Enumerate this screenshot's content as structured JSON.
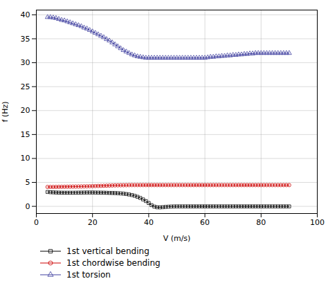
{
  "chart_data": {
    "type": "line",
    "xlabel": "V (m/s)",
    "ylabel": "f (Hz)",
    "xlim": [
      0,
      100
    ],
    "ylim": [
      -1.5,
      41
    ],
    "xticks": [
      0,
      20,
      40,
      60,
      80,
      100
    ],
    "yticks": [
      0,
      5,
      10,
      15,
      20,
      25,
      30,
      35,
      40
    ],
    "grid": true,
    "legend": "bottom",
    "x": [
      4,
      5,
      6,
      7,
      8,
      9,
      10,
      11,
      12,
      13,
      14,
      15,
      16,
      17,
      18,
      19,
      20,
      21,
      22,
      23,
      24,
      25,
      26,
      27,
      28,
      29,
      30,
      31,
      32,
      33,
      34,
      35,
      36,
      37,
      38,
      39,
      40,
      41,
      42,
      43,
      44,
      45,
      46,
      47,
      48,
      49,
      50,
      51,
      52,
      53,
      54,
      55,
      56,
      57,
      58,
      59,
      60,
      61,
      62,
      63,
      64,
      65,
      66,
      67,
      68,
      69,
      70,
      71,
      72,
      73,
      74,
      75,
      76,
      77,
      78,
      79,
      80,
      81,
      82,
      83,
      84,
      85,
      86,
      87,
      88,
      89,
      90
    ],
    "series": [
      {
        "name": "1st vertical bending",
        "color": "#000000",
        "marker": "square",
        "values": [
          3.0,
          2.95,
          2.92,
          2.89,
          2.87,
          2.85,
          2.84,
          2.84,
          2.84,
          2.84,
          2.85,
          2.86,
          2.87,
          2.88,
          2.89,
          2.89,
          2.89,
          2.88,
          2.87,
          2.86,
          2.85,
          2.83,
          2.81,
          2.79,
          2.77,
          2.74,
          2.7,
          2.65,
          2.57,
          2.48,
          2.36,
          2.2,
          2.0,
          1.75,
          1.45,
          1.1,
          0.7,
          0.25,
          -0.05,
          -0.2,
          -0.22,
          -0.18,
          -0.12,
          -0.07,
          -0.04,
          -0.02,
          -0.01,
          -0.01,
          -0.01,
          -0.01,
          -0.01,
          -0.01,
          -0.01,
          -0.01,
          -0.01,
          -0.01,
          -0.01,
          -0.01,
          -0.01,
          -0.01,
          -0.01,
          -0.01,
          -0.01,
          -0.01,
          -0.01,
          -0.01,
          -0.01,
          -0.01,
          -0.01,
          -0.01,
          -0.01,
          -0.01,
          -0.01,
          -0.01,
          -0.01,
          -0.01,
          -0.01,
          -0.01,
          -0.01,
          -0.01,
          -0.01,
          -0.01,
          -0.01,
          -0.01,
          -0.01,
          -0.01,
          -0.01
        ]
      },
      {
        "name": "1st chordwise bending",
        "color": "#cc0000",
        "marker": "circle",
        "values": [
          4.05,
          4.05,
          4.05,
          4.06,
          4.07,
          4.08,
          4.09,
          4.1,
          4.11,
          4.12,
          4.13,
          4.14,
          4.15,
          4.17,
          4.18,
          4.2,
          4.22,
          4.24,
          4.26,
          4.28,
          4.3,
          4.32,
          4.34,
          4.36,
          4.38,
          4.39,
          4.4,
          4.41,
          4.42,
          4.43,
          4.44,
          4.44,
          4.44,
          4.44,
          4.44,
          4.44,
          4.44,
          4.44,
          4.44,
          4.44,
          4.44,
          4.44,
          4.44,
          4.44,
          4.44,
          4.44,
          4.44,
          4.44,
          4.44,
          4.44,
          4.44,
          4.44,
          4.44,
          4.44,
          4.44,
          4.44,
          4.44,
          4.44,
          4.44,
          4.44,
          4.44,
          4.44,
          4.44,
          4.44,
          4.44,
          4.44,
          4.44,
          4.44,
          4.44,
          4.44,
          4.44,
          4.44,
          4.44,
          4.44,
          4.44,
          4.44,
          4.44,
          4.44,
          4.44,
          4.44,
          4.44,
          4.44,
          4.44,
          4.44,
          4.44,
          4.44,
          4.44
        ]
      },
      {
        "name": "1st torsion",
        "color": "#4040a0",
        "marker": "triangle",
        "values": [
          39.5,
          39.5,
          39.4,
          39.3,
          39.1,
          38.9,
          38.8,
          38.6,
          38.4,
          38.2,
          38.0,
          37.8,
          37.6,
          37.3,
          37.1,
          36.8,
          36.5,
          36.2,
          35.9,
          35.6,
          35.3,
          34.9,
          34.6,
          34.2,
          33.8,
          33.4,
          33.0,
          32.6,
          32.3,
          32.0,
          31.7,
          31.5,
          31.3,
          31.2,
          31.1,
          31.0,
          31.0,
          31.0,
          31.0,
          31.0,
          31.0,
          31.0,
          31.0,
          31.0,
          31.0,
          31.0,
          31.0,
          31.0,
          31.0,
          31.0,
          31.0,
          31.0,
          31.0,
          31.0,
          31.0,
          31.0,
          31.0,
          31.1,
          31.2,
          31.2,
          31.3,
          31.3,
          31.4,
          31.4,
          31.5,
          31.5,
          31.6,
          31.6,
          31.7,
          31.7,
          31.8,
          31.8,
          31.9,
          31.9,
          32.0,
          32.0,
          32.0,
          32.0,
          32.0,
          32.0,
          32.0,
          32.0,
          32.0,
          32.0,
          32.0,
          32.0,
          32.0
        ]
      }
    ]
  }
}
